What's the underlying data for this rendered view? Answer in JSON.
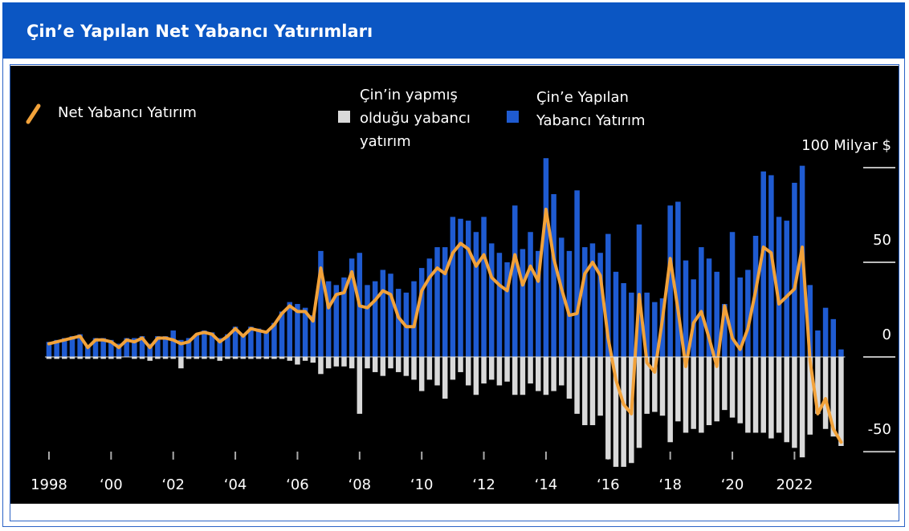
{
  "chart_data": {
    "type": "bar",
    "title": "Çin’e Yapılan Net Yabancı Yatırımları",
    "x": [
      1998,
      1998.25,
      1998.5,
      1998.75,
      1999,
      1999.25,
      1999.5,
      1999.75,
      2000,
      2000.25,
      2000.5,
      2000.75,
      2001,
      2001.25,
      2001.5,
      2001.75,
      2002,
      2002.25,
      2002.5,
      2002.75,
      2003,
      2003.25,
      2003.5,
      2003.75,
      2004,
      2004.25,
      2004.5,
      2004.75,
      2005,
      2005.25,
      2005.5,
      2005.75,
      2006,
      2006.25,
      2006.5,
      2006.75,
      2007,
      2007.25,
      2007.5,
      2007.75,
      2008,
      2008.25,
      2008.5,
      2008.75,
      2009,
      2009.25,
      2009.5,
      2009.75,
      2010,
      2010.25,
      2010.5,
      2010.75,
      2011,
      2011.25,
      2011.5,
      2011.75,
      2012,
      2012.25,
      2012.5,
      2012.75,
      2013,
      2013.25,
      2013.5,
      2013.75,
      2014,
      2014.25,
      2014.5,
      2014.75,
      2015,
      2015.25,
      2015.5,
      2015.75,
      2016,
      2016.25,
      2016.5,
      2016.75,
      2017,
      2017.25,
      2017.5,
      2017.75,
      2018,
      2018.25,
      2018.5,
      2018.75,
      2019,
      2019.25,
      2019.5,
      2019.75,
      2020,
      2020.25,
      2020.5,
      2020.75,
      2021,
      2021.25,
      2021.5,
      2021.75,
      2022,
      2022.25,
      2022.5,
      2022.75,
      2023,
      2023.25,
      2023.5
    ],
    "series": [
      {
        "name": "Net Yabancı Yatırım",
        "type": "line",
        "color": "#f2a23a",
        "values": [
          7,
          8,
          9,
          10,
          11,
          5,
          9,
          9,
          8,
          5,
          9,
          8,
          10,
          5,
          10,
          10,
          9,
          7,
          8,
          12,
          13,
          12,
          8,
          11,
          15,
          11,
          15,
          14,
          13,
          17,
          23,
          27,
          24,
          24,
          19,
          47,
          26,
          33,
          34,
          45,
          27,
          26,
          30,
          35,
          33,
          21,
          16,
          16,
          35,
          42,
          47,
          44,
          55,
          60,
          57,
          48,
          54,
          42,
          38,
          35,
          54,
          38,
          48,
          40,
          78,
          52,
          36,
          22,
          23,
          44,
          50,
          43,
          10,
          -12,
          -25,
          -30,
          33,
          -3,
          -8,
          20,
          52,
          25,
          -5,
          18,
          24,
          10,
          -5,
          27,
          10,
          4,
          15,
          35,
          58,
          55,
          28,
          32,
          36,
          58,
          -2,
          -30,
          -22,
          -38,
          -45
        ]
      },
      {
        "name": "Çin’in yapmış olduğu yabancı yatırım",
        "type": "bar",
        "color": "#d9d9d9",
        "values": [
          -1,
          -1,
          -1,
          -1,
          -1,
          -1,
          -1,
          -1,
          -1,
          -1,
          0,
          -1,
          -1,
          -2,
          -1,
          -1,
          -1,
          -6,
          -1,
          -1,
          -1,
          -1,
          -2,
          -1,
          -1,
          -1,
          -1,
          -1,
          -1,
          -1,
          -1,
          -2,
          -4,
          -2,
          -3,
          -9,
          -6,
          -5,
          -5,
          -6,
          -30,
          -6,
          -8,
          -10,
          -6,
          -8,
          -10,
          -12,
          -18,
          -12,
          -15,
          -22,
          -12,
          -8,
          -15,
          -20,
          -14,
          -12,
          -15,
          -13,
          -20,
          -20,
          -14,
          -18,
          -20,
          -18,
          -15,
          -22,
          -30,
          -36,
          -36,
          -31,
          -54,
          -58,
          -58,
          -56,
          -48,
          -30,
          -29,
          -31,
          -45,
          -34,
          -40,
          -38,
          -40,
          -36,
          -34,
          -28,
          -32,
          -35,
          -40,
          -40,
          -40,
          -43,
          -40,
          -45,
          -48,
          -53,
          -41,
          -30,
          -38,
          -42,
          -47
        ]
      },
      {
        "name": "Çin’e Yapılan Yabancı Yatırım",
        "type": "bar",
        "color": "#1f5bd1",
        "values": [
          8,
          9,
          10,
          11,
          12,
          6,
          10,
          10,
          9,
          7,
          10,
          10,
          11,
          7,
          11,
          11,
          14,
          9,
          10,
          12,
          14,
          13,
          10,
          12,
          16,
          12,
          16,
          15,
          14,
          18,
          24,
          29,
          28,
          26,
          22,
          56,
          40,
          38,
          42,
          52,
          55,
          38,
          40,
          46,
          44,
          36,
          34,
          40,
          47,
          52,
          58,
          58,
          74,
          73,
          72,
          66,
          74,
          60,
          55,
          50,
          80,
          57,
          66,
          56,
          105,
          86,
          63,
          56,
          88,
          58,
          60,
          55,
          65,
          45,
          39,
          34,
          70,
          34,
          29,
          31,
          80,
          82,
          51,
          41,
          58,
          52,
          45,
          28,
          66,
          42,
          46,
          64,
          98,
          96,
          74,
          72,
          92,
          101,
          38,
          14,
          26,
          20,
          4
        ]
      }
    ],
    "xlim": [
      1996.76,
      2025.35
    ],
    "xticks": [
      {
        "value": 1998,
        "label": "1998"
      },
      {
        "value": 2000,
        "label": "‘00"
      },
      {
        "value": 2002,
        "label": "‘02"
      },
      {
        "value": 2004,
        "label": "‘04"
      },
      {
        "value": 2006,
        "label": "‘06"
      },
      {
        "value": 2008,
        "label": "‘08"
      },
      {
        "value": 2010,
        "label": "‘10"
      },
      {
        "value": 2012,
        "label": "‘12"
      },
      {
        "value": 2014,
        "label": "‘14"
      },
      {
        "value": 2016,
        "label": "‘16"
      },
      {
        "value": 2018,
        "label": "‘18"
      },
      {
        "value": 2020,
        "label": "‘20"
      },
      {
        "value": 2022,
        "label": "2022"
      }
    ],
    "ylim": [
      -77.5,
      153.8
    ],
    "yticks": [
      {
        "value": 100,
        "label": "100 Milyar $"
      },
      50,
      0,
      -50
    ]
  }
}
